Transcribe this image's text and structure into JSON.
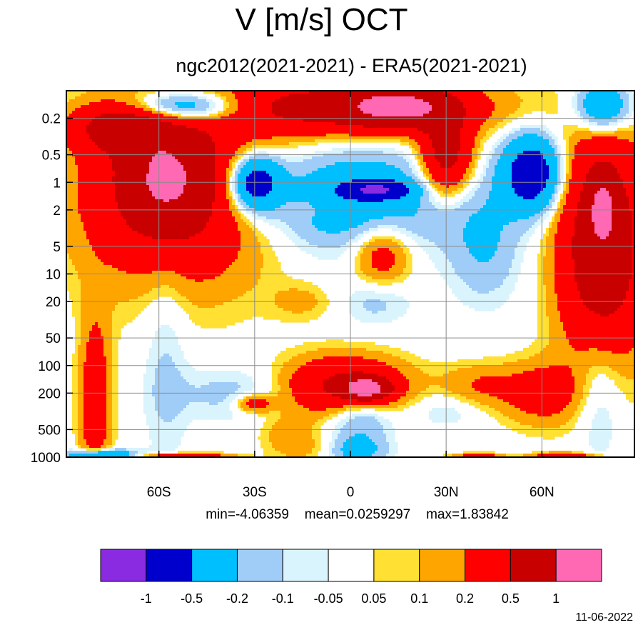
{
  "chart_data": {
    "type": "heatmap",
    "title": "V [m/s] OCT",
    "subtitle": "ngc2012(2021-2021) - ERA5(2021-2021)",
    "x_axis": {
      "ticks": [
        {
          "label": "60S",
          "value": -60
        },
        {
          "label": "30S",
          "value": -30
        },
        {
          "label": "0",
          "value": 0
        },
        {
          "label": "30N",
          "value": 30
        },
        {
          "label": "60N",
          "value": 60
        }
      ],
      "range": [
        -89,
        89
      ]
    },
    "y_axis": {
      "scale": "log",
      "reversed": true,
      "range": [
        1000,
        0.1
      ],
      "ticks": [
        {
          "label": "0.2",
          "value": 0.2
        },
        {
          "label": "0.5",
          "value": 0.5
        },
        {
          "label": "1",
          "value": 1
        },
        {
          "label": "2",
          "value": 2
        },
        {
          "label": "5",
          "value": 5
        },
        {
          "label": "10",
          "value": 10
        },
        {
          "label": "20",
          "value": 20
        },
        {
          "label": "50",
          "value": 50
        },
        {
          "label": "100",
          "value": 100
        },
        {
          "label": "200",
          "value": 200
        },
        {
          "label": "500",
          "value": 500
        },
        {
          "label": "1000",
          "value": 1000
        }
      ]
    },
    "grid": true,
    "stats": {
      "min": "-4.06359",
      "mean": "0.0259297",
      "max": "1.83842"
    },
    "colorbar": {
      "position": "bottom",
      "colors": [
        "#8a2be2",
        "#0000cd",
        "#00bfff",
        "#a0cdf8",
        "#d9f4fd",
        "#ffffff",
        "#ffe033",
        "#ffa500",
        "#ff0000",
        "#c80000",
        "#ff69b4"
      ],
      "labels": [
        "-1",
        "-0.5",
        "-0.2",
        "-0.1",
        "-0.05",
        "0.05",
        "0.1",
        "0.2",
        "0.5",
        "1"
      ]
    },
    "regions": [
      {
        "lon": -54,
        "p": 1.2,
        "rx": 30,
        "rd": 1.0,
        "value": 0.6
      },
      {
        "lon": -58,
        "p": 0.9,
        "rx": 13,
        "rd": 0.55,
        "value": 0.6
      },
      {
        "lon": -72,
        "p": 0.25,
        "rx": 14,
        "rd": 0.25,
        "value": 0.6
      },
      {
        "lon": 0,
        "p": 0.15,
        "rx": 40,
        "rd": 0.3,
        "value": 0.7
      },
      {
        "lon": 15,
        "p": 0.15,
        "rx": 14,
        "rd": 0.2,
        "value": 0.7
      },
      {
        "lon": 30,
        "p": 0.5,
        "rx": 8,
        "rd": 0.45,
        "value": 0.7
      },
      {
        "lon": -2,
        "p": 1.5,
        "rx": 35,
        "rd": 0.55,
        "value": -0.4
      },
      {
        "lon": -30,
        "p": 1.0,
        "rx": 8,
        "rd": 0.3,
        "value": -0.8
      },
      {
        "lon": 8,
        "p": 1.2,
        "rx": 10,
        "rd": 0.1,
        "value": -0.8
      },
      {
        "lon": -52,
        "p": 0.15,
        "rx": 18,
        "rd": 0.18,
        "value": -0.7
      },
      {
        "lon": 57,
        "p": 0.8,
        "rx": 9,
        "rd": 0.4,
        "value": -0.8
      },
      {
        "lon": 79,
        "p": 0.15,
        "rx": 9,
        "rd": 0.3,
        "value": -0.6
      },
      {
        "lon": 42,
        "p": 5.0,
        "rx": 11,
        "rd": 0.6,
        "value": -0.2
      },
      {
        "lon": 79,
        "p": 5.0,
        "rx": 13,
        "rd": 1.3,
        "value": 0.85
      },
      {
        "lon": 79,
        "p": 2.0,
        "rx": 3,
        "rd": 0.25,
        "value": 0.85
      },
      {
        "lon": 10,
        "p": 6.0,
        "rx": 9,
        "rd": 0.35,
        "value": 0.35
      },
      {
        "lon": -15,
        "p": 2.0,
        "rx": 6,
        "rd": 0.1,
        "value": 0.12
      },
      {
        "lon": 8,
        "p": 20.0,
        "rx": 11,
        "rd": 0.25,
        "value": -0.14
      },
      {
        "lon": -15,
        "p": 20.0,
        "rx": 10,
        "rd": 0.2,
        "value": 0.12
      },
      {
        "lon": -80,
        "p": 250.0,
        "rx": 5,
        "rd": 1.0,
        "value": 0.35
      },
      {
        "lon": -58,
        "p": 60.0,
        "rx": 7,
        "rd": 1.5,
        "value": -0.12
      },
      {
        "lon": 78,
        "p": 150.0,
        "rx": 8,
        "rd": 0.8,
        "value": -0.25
      },
      {
        "lon": -2,
        "p": 170.0,
        "rx": 19,
        "rd": 0.32,
        "value": 0.6
      },
      {
        "lon": 5,
        "p": 180.0,
        "rx": 7,
        "rd": 0.12,
        "value": 1.05
      },
      {
        "lon": -35,
        "p": 200.0,
        "rx": 20,
        "rd": 0.3,
        "value": -0.15
      },
      {
        "lon": 60,
        "p": 200.0,
        "rx": 13,
        "rd": 0.35,
        "value": 0.3
      },
      {
        "lon": 40,
        "p": 170.0,
        "rx": 12,
        "rd": 0.25,
        "value": 0.2
      },
      {
        "lon": 3,
        "p": 350.0,
        "rx": 10,
        "rd": 0.3,
        "value": -0.3
      },
      {
        "lon": -30,
        "p": 260.0,
        "rx": 6,
        "rd": 0.1,
        "value": 0.35
      },
      {
        "lon": -20,
        "p": 520.0,
        "rx": 9,
        "rd": 0.2,
        "value": 0.13
      },
      {
        "lon": 30,
        "p": 300.0,
        "rx": 12,
        "rd": 0.2,
        "value": -0.12
      },
      {
        "lon": 2,
        "p": 850.0,
        "rx": 9,
        "rd": 0.15,
        "value": -0.25
      },
      {
        "lon": -78,
        "p": 950.0,
        "rx": 10,
        "rd": 0.06,
        "value": -0.6
      },
      {
        "lon": 67,
        "p": 990.0,
        "rx": 10,
        "rd": 0.04,
        "value": 0.5
      },
      {
        "lon": -52,
        "p": 990.0,
        "rx": 14,
        "rd": 0.04,
        "value": 0.5
      },
      {
        "lon": 40,
        "p": 990.0,
        "rx": 8,
        "rd": 0.04,
        "value": 0.35
      },
      {
        "lon": -15,
        "p": 800.0,
        "rx": 10,
        "rd": 0.15,
        "value": 0.12
      }
    ]
  }
}
